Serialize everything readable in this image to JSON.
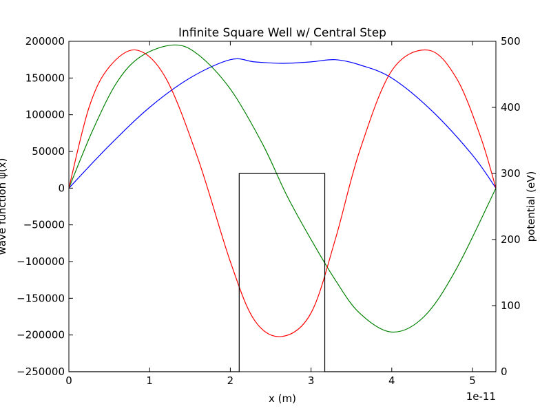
{
  "chart_data": {
    "type": "line",
    "title": "Infinite Square Well w/ Central Step",
    "xlabel": "x (m)",
    "ylabel": "wave function ψ(x)",
    "y2label": "potential (eV)",
    "x_offset_label": "1e-11",
    "xlim": [
      0,
      5.29
    ],
    "ylim": [
      -250000,
      200000
    ],
    "y2lim": [
      0,
      500
    ],
    "xticks": [
      0,
      1,
      2,
      3,
      4,
      5
    ],
    "xtick_labels": [
      "0",
      "1",
      "2",
      "3",
      "4",
      "5"
    ],
    "yticks": [
      200000,
      150000,
      100000,
      50000,
      0,
      -50000,
      -100000,
      -150000,
      -200000,
      -250000
    ],
    "ytick_labels": [
      "200000",
      "150000",
      "100000",
      "50000",
      "0",
      "−50000",
      "−100000",
      "−150000",
      "−200000",
      "−250000"
    ],
    "y2ticks": [
      500,
      400,
      300,
      200,
      100,
      0
    ],
    "y2tick_labels": [
      "500",
      "400",
      "300",
      "200",
      "100",
      "0"
    ],
    "grid": false,
    "series": [
      {
        "color": "#0000ff",
        "axis": "left",
        "x": [
          0,
          0.5,
          1,
          1.5,
          2,
          2.3,
          2.64,
          3,
          3.3,
          3.6,
          4,
          4.5,
          5,
          5.29
        ],
        "y": [
          0,
          58000,
          110000,
          150000,
          175000,
          172000,
          170000,
          172000,
          175000,
          168000,
          150000,
          105000,
          45000,
          0
        ]
      },
      {
        "color": "#008000",
        "axis": "left",
        "x": [
          0,
          0.3,
          0.6,
          0.9,
          1.3,
          1.6,
          2.0,
          2.4,
          2.7,
          3.0,
          3.3,
          3.6,
          4.0,
          4.4,
          4.8,
          5.29
        ],
        "y": [
          0,
          80000,
          145000,
          180000,
          195000,
          182000,
          135000,
          60000,
          -10000,
          -70000,
          -125000,
          -170000,
          -196000,
          -175000,
          -110000,
          0
        ]
      },
      {
        "color": "#ff0000",
        "axis": "left",
        "x": [
          0,
          0.25,
          0.5,
          0.84,
          1.2,
          1.6,
          2.0,
          2.3,
          2.64,
          3.0,
          3.3,
          3.6,
          4.0,
          4.45,
          4.8,
          5.1,
          5.29
        ],
        "y": [
          0,
          110000,
          165000,
          188000,
          150000,
          40000,
          -100000,
          -180000,
          -202000,
          -170000,
          -70000,
          50000,
          160000,
          188000,
          150000,
          70000,
          0
        ]
      },
      {
        "color": "#000000",
        "axis": "right",
        "x": [
          0,
          2.11,
          2.11,
          3.17,
          3.17,
          5.29
        ],
        "y": [
          0,
          0,
          300,
          300,
          0,
          0
        ]
      }
    ]
  }
}
